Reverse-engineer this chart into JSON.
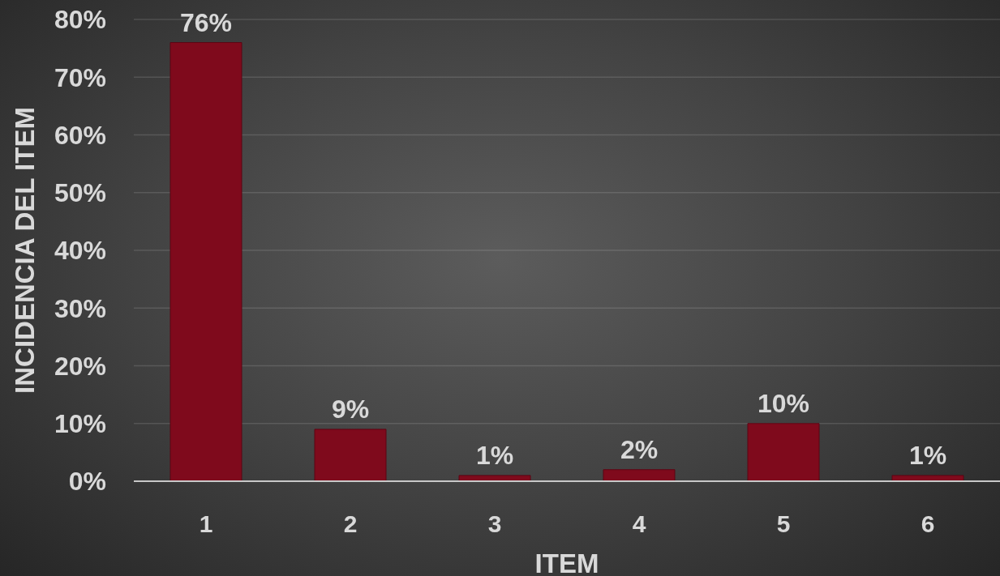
{
  "chart_data": {
    "type": "bar",
    "xlabel": "ITEM",
    "ylabel": "INCIDENCIA DEL ITEM",
    "categories": [
      "1",
      "2",
      "3",
      "4",
      "5",
      "6"
    ],
    "values": [
      76,
      9,
      1,
      2,
      10,
      1
    ],
    "value_labels": [
      "76%",
      "9%",
      "1%",
      "2%",
      "10%",
      "1%"
    ],
    "color": "#7f0a1c",
    "ylim": [
      0,
      80
    ],
    "yticks": [
      {
        "value": 0,
        "label": "0%"
      },
      {
        "value": 10,
        "label": "10%"
      },
      {
        "value": 20,
        "label": "20%"
      },
      {
        "value": 30,
        "label": "30%"
      },
      {
        "value": 40,
        "label": "40%"
      },
      {
        "value": 50,
        "label": "50%"
      },
      {
        "value": 60,
        "label": "60%"
      },
      {
        "value": 70,
        "label": "70%"
      },
      {
        "value": 80,
        "label": "80%"
      }
    ],
    "grid": "y"
  }
}
